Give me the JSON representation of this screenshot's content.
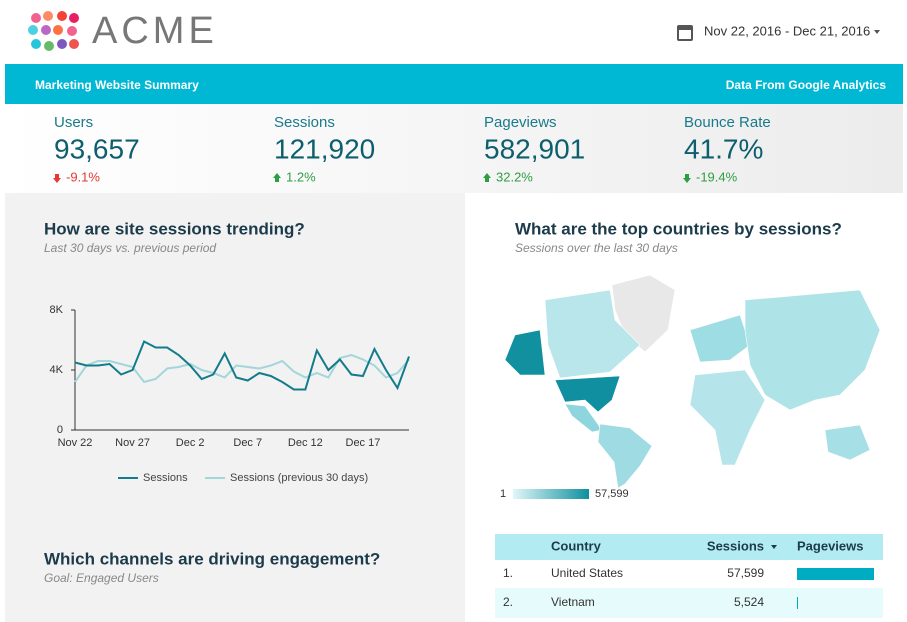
{
  "header": {
    "logo_text": "ACME",
    "date_range": "Nov 22, 2016 - Dec 21, 2016"
  },
  "banner": {
    "left": "Marketing Website Summary",
    "right": "Data From Google Analytics"
  },
  "kpis": [
    {
      "label": "Users",
      "value": "93,657",
      "change": "-9.1%",
      "direction": "down",
      "color": "#e53935"
    },
    {
      "label": "Sessions",
      "value": "121,920",
      "change": "1.2%",
      "direction": "up",
      "color": "#2e9e44"
    },
    {
      "label": "Pageviews",
      "value": "582,901",
      "change": "32.2%",
      "direction": "up",
      "color": "#2e9e44"
    },
    {
      "label": "Bounce Rate",
      "value": "41.7%",
      "change": "-19.4%",
      "direction": "down",
      "color": "#2e9e44"
    }
  ],
  "sessions_chart": {
    "type": "line",
    "title": "How are site sessions trending?",
    "subtitle": "Last 30 days vs. previous period",
    "categories": [
      "Nov 22",
      null,
      null,
      null,
      null,
      "Nov 27",
      null,
      null,
      null,
      null,
      "Dec 2",
      null,
      null,
      null,
      null,
      "Dec 7",
      null,
      null,
      null,
      null,
      "Dec 12",
      null,
      null,
      null,
      null,
      "Dec 17",
      null,
      null,
      null,
      null
    ],
    "series": [
      {
        "name": "Sessions",
        "color": "#137c8b",
        "values": [
          4500,
          4300,
          4300,
          4400,
          3700,
          4000,
          5900,
          5500,
          5500,
          5000,
          4300,
          3400,
          3700,
          5100,
          3500,
          3300,
          3800,
          3600,
          3200,
          2700,
          2700,
          5300,
          4000,
          4700,
          3700,
          3600,
          5400,
          4000,
          2800,
          4900
        ]
      },
      {
        "name": "Sessions (previous 30 days)",
        "color": "#a3d6da",
        "values": [
          3200,
          4300,
          4600,
          4600,
          4400,
          4200,
          3200,
          3400,
          4100,
          4200,
          4400,
          4000,
          3800,
          3500,
          4300,
          4200,
          4100,
          4300,
          4600,
          3900,
          3500,
          3800,
          3500,
          4800,
          5000,
          4700,
          4300,
          3500,
          3800,
          4700
        ]
      }
    ],
    "ylim": [
      0,
      8000
    ],
    "yticks": [
      0,
      {
        "value": 4000,
        "label": "4K"
      },
      {
        "value": 8000,
        "label": "8K"
      }
    ]
  },
  "channels": {
    "title": "Which channels are driving engagement?",
    "subtitle": "Goal: Engaged Users"
  },
  "countries": {
    "title": "What are the top countries by sessions?",
    "subtitle": "Sessions over the last 30 days",
    "scale_min": "1",
    "scale_max": "57,599"
  },
  "table": {
    "columns": [
      "Country",
      "Sessions",
      "Pageviews"
    ],
    "rows": [
      {
        "rank": "1.",
        "country": "United States",
        "sessions": "57,599",
        "pageviews": 280000
      },
      {
        "rank": "2.",
        "country": "Vietnam",
        "sessions": "5,524",
        "pageviews": 3600
      }
    ]
  }
}
